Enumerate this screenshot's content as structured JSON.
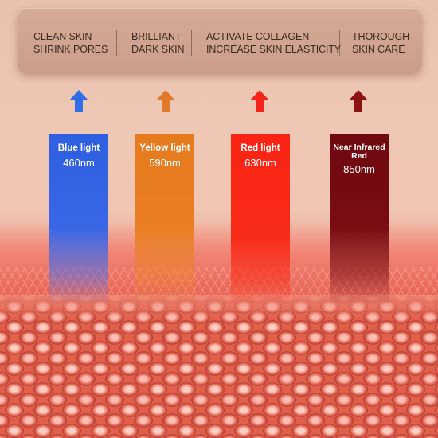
{
  "benefits": [
    {
      "line1": "CLEAN SKIN",
      "line2": "SHRINK PORES"
    },
    {
      "line1": "BRILLIANT",
      "line2": "DARK SKIN"
    },
    {
      "line1": "ACTIVATE COLLAGEN",
      "line2": "INCREASE SKIN ELASTICITY"
    },
    {
      "line1": "THOROUGH",
      "line2": "SKIN CARE"
    }
  ],
  "lights": [
    {
      "name": "Blue light",
      "wavelength": "460nm",
      "color": "#2d5fe0",
      "arrow_icon": "up-arrow-icon"
    },
    {
      "name": "Yellow light",
      "wavelength": "590nm",
      "color": "#e67a1e",
      "arrow_icon": "up-arrow-icon"
    },
    {
      "name": "Red light",
      "wavelength": "630nm",
      "color": "#fb2414",
      "arrow_icon": "up-arrow-icon"
    },
    {
      "name_line1": "Near Infrared",
      "name_line2": "Red",
      "wavelength": "850nm",
      "color": "#6e0a10",
      "arrow_icon": "up-arrow-icon"
    }
  ],
  "arrow_colors": [
    "#2f6ee6",
    "#e07a2a",
    "#f4241a",
    "#8a1414"
  ]
}
